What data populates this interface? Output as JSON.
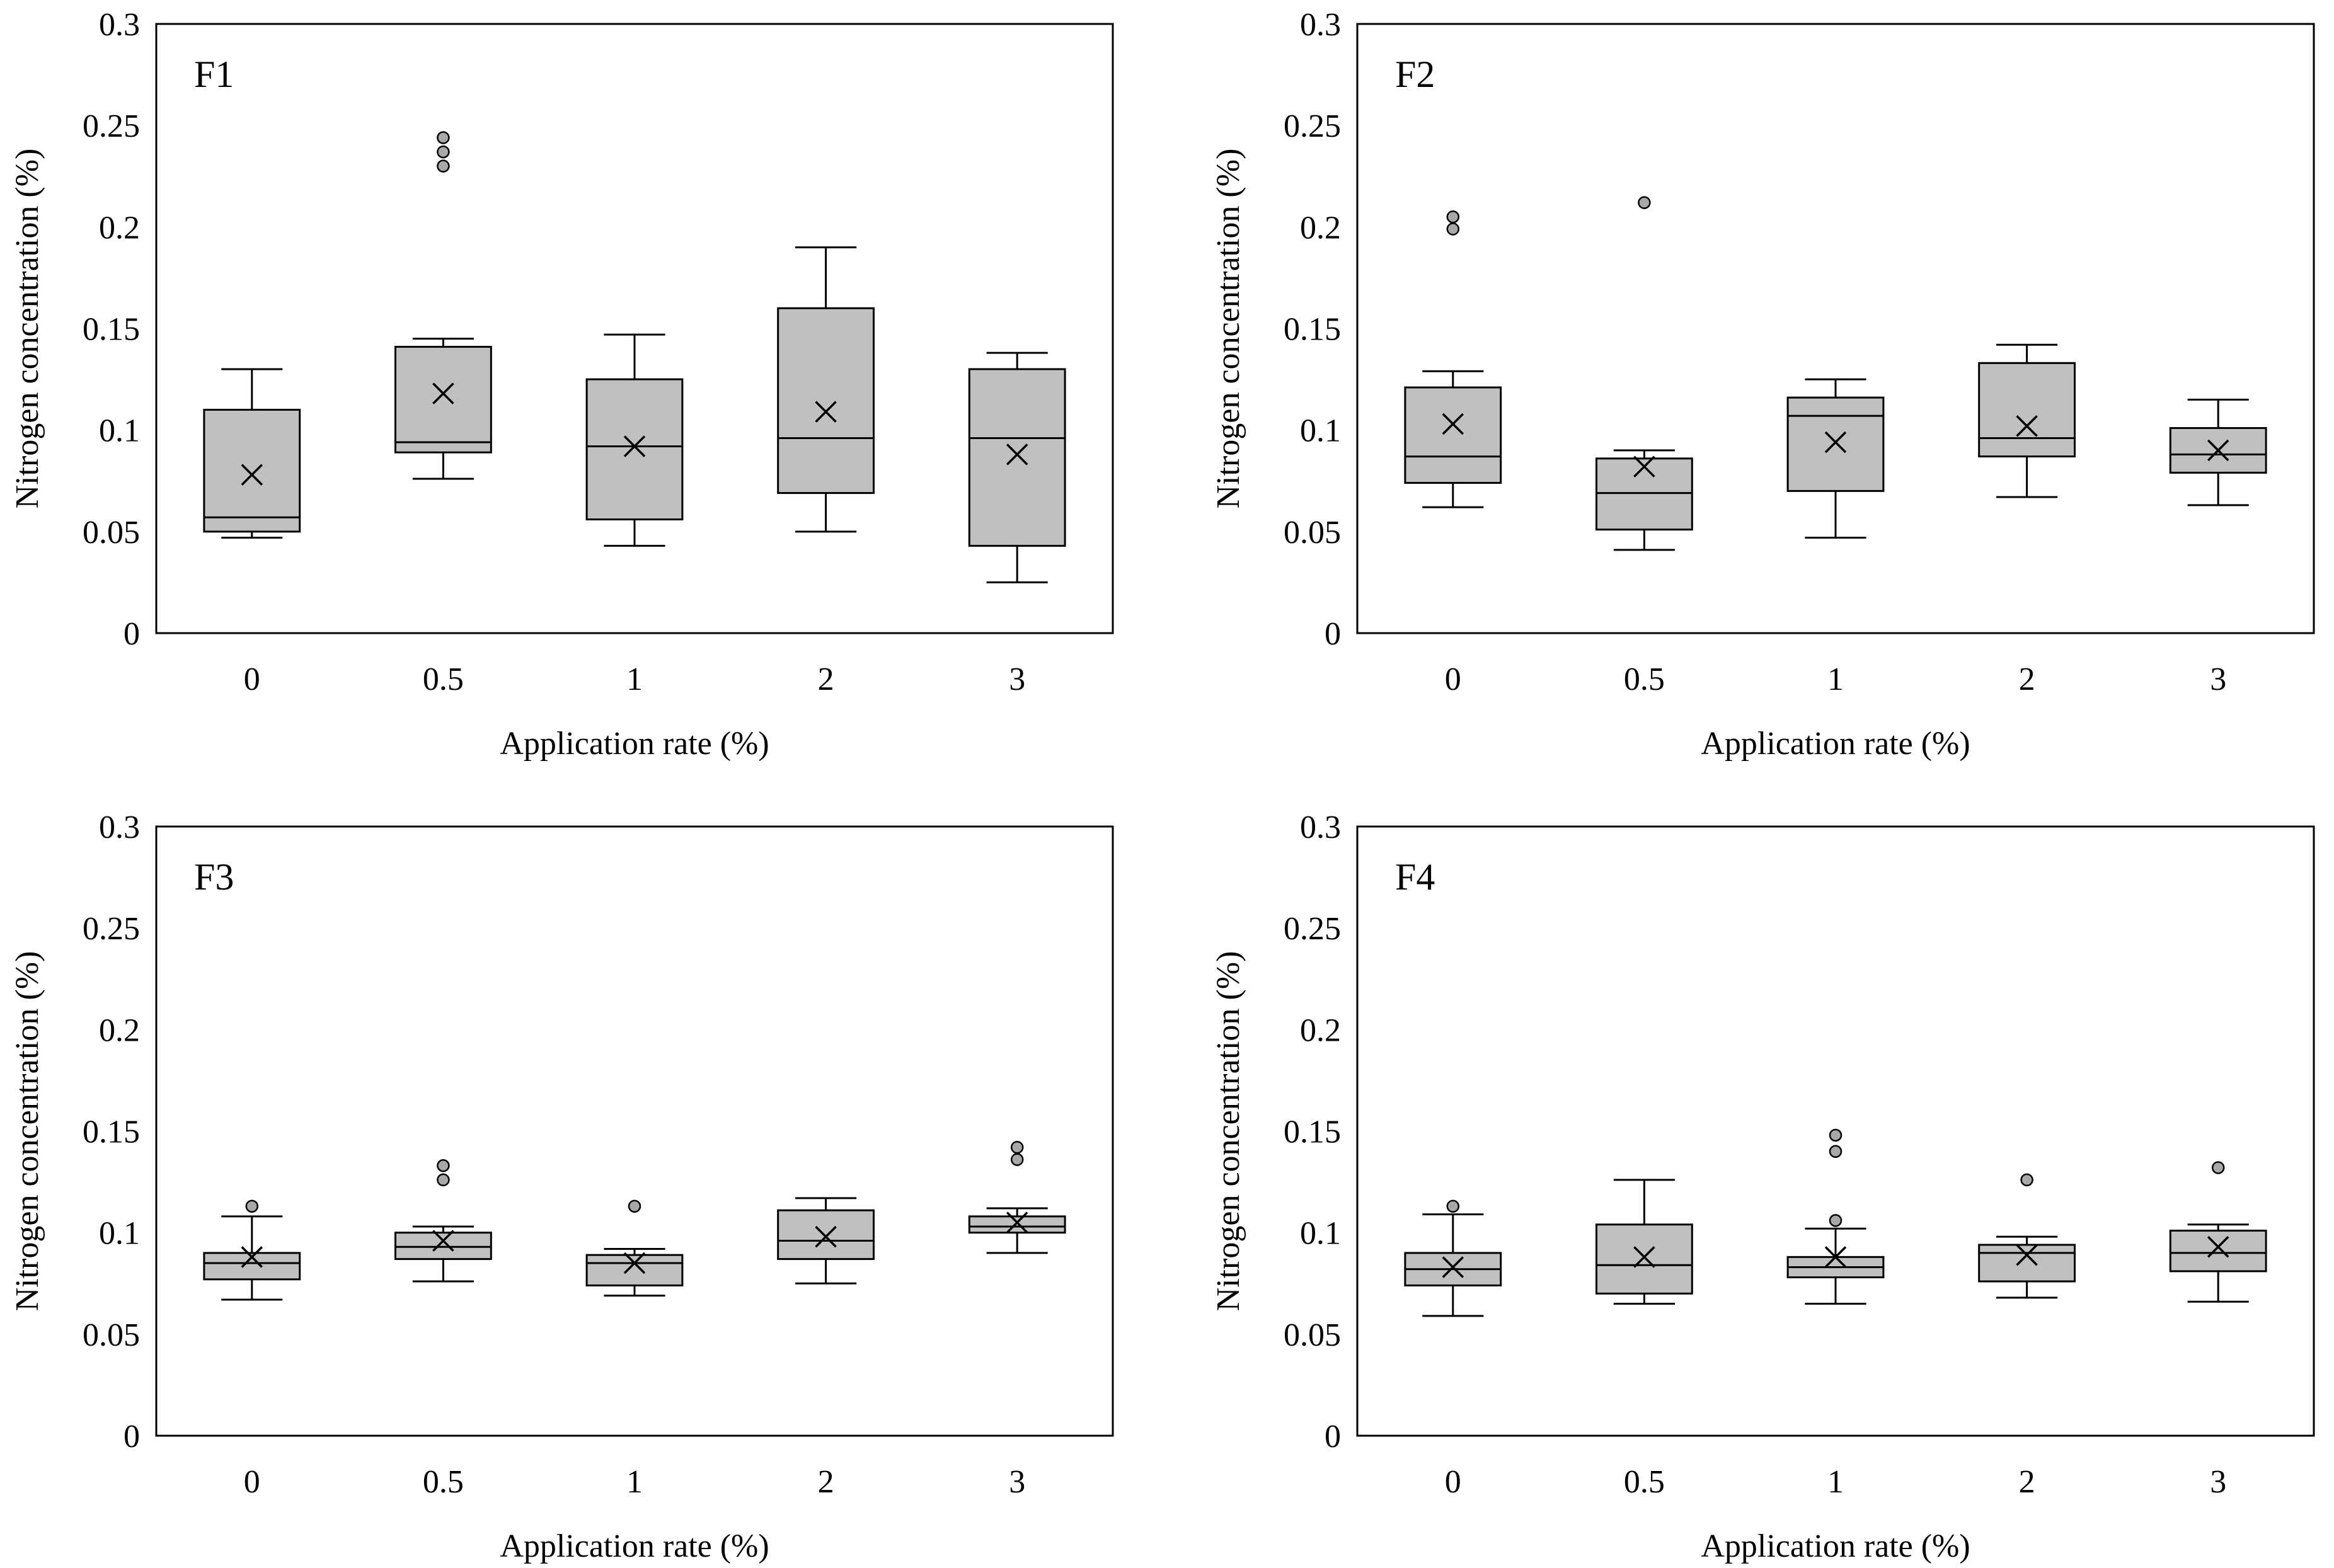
{
  "style": {
    "box_fill": "#c0c0c0",
    "stroke": "#000000",
    "outlier_fill": "#a8a8a8",
    "background": "#ffffff"
  },
  "chart_data": [
    {
      "type": "box",
      "title": "F1",
      "xlabel": "Application rate (%)",
      "ylabel": "Nitrogen concentration (%)",
      "categories": [
        "0",
        "0.5",
        "1",
        "2",
        "3"
      ],
      "ylim": [
        0,
        0.3
      ],
      "yticks": [
        "0",
        "0.05",
        "0.1",
        "0.15",
        "0.2",
        "0.25",
        "0.3"
      ],
      "grid": false,
      "boxes": [
        {
          "category": "0",
          "whisker_low": 0.047,
          "q1": 0.05,
          "median": 0.057,
          "q3": 0.11,
          "whisker_high": 0.13,
          "mean": 0.078,
          "outliers": []
        },
        {
          "category": "0.5",
          "whisker_low": 0.076,
          "q1": 0.089,
          "median": 0.094,
          "q3": 0.141,
          "whisker_high": 0.145,
          "mean": 0.118,
          "outliers": [
            0.23,
            0.237,
            0.244
          ]
        },
        {
          "category": "1",
          "whisker_low": 0.043,
          "q1": 0.056,
          "median": 0.092,
          "q3": 0.125,
          "whisker_high": 0.147,
          "mean": 0.092,
          "outliers": []
        },
        {
          "category": "2",
          "whisker_low": 0.05,
          "q1": 0.069,
          "median": 0.096,
          "q3": 0.16,
          "whisker_high": 0.19,
          "mean": 0.109,
          "outliers": []
        },
        {
          "category": "3",
          "whisker_low": 0.025,
          "q1": 0.043,
          "median": 0.096,
          "q3": 0.13,
          "whisker_high": 0.138,
          "mean": 0.088,
          "outliers": []
        }
      ]
    },
    {
      "type": "box",
      "title": "F2",
      "xlabel": "Application rate (%)",
      "ylabel": "Nitrogen concentration (%)",
      "categories": [
        "0",
        "0.5",
        "1",
        "2",
        "3"
      ],
      "ylim": [
        0,
        0.3
      ],
      "yticks": [
        "0",
        "0.05",
        "0.1",
        "0.15",
        "0.2",
        "0.25",
        "0.3"
      ],
      "grid": false,
      "boxes": [
        {
          "category": "0",
          "whisker_low": 0.062,
          "q1": 0.074,
          "median": 0.087,
          "q3": 0.121,
          "whisker_high": 0.129,
          "mean": 0.103,
          "outliers": [
            0.199,
            0.205
          ]
        },
        {
          "category": "0.5",
          "whisker_low": 0.041,
          "q1": 0.051,
          "median": 0.069,
          "q3": 0.086,
          "whisker_high": 0.09,
          "mean": 0.082,
          "outliers": [
            0.212
          ]
        },
        {
          "category": "1",
          "whisker_low": 0.047,
          "q1": 0.07,
          "median": 0.107,
          "q3": 0.116,
          "whisker_high": 0.125,
          "mean": 0.094,
          "outliers": []
        },
        {
          "category": "2",
          "whisker_low": 0.067,
          "q1": 0.087,
          "median": 0.096,
          "q3": 0.133,
          "whisker_high": 0.142,
          "mean": 0.102,
          "outliers": []
        },
        {
          "category": "3",
          "whisker_low": 0.063,
          "q1": 0.079,
          "median": 0.088,
          "q3": 0.101,
          "whisker_high": 0.115,
          "mean": 0.09,
          "outliers": []
        }
      ]
    },
    {
      "type": "box",
      "title": "F3",
      "xlabel": "Application rate (%)",
      "ylabel": "Nitrogen concentration (%)",
      "categories": [
        "0",
        "0.5",
        "1",
        "2",
        "3"
      ],
      "ylim": [
        0,
        0.3
      ],
      "yticks": [
        "0",
        "0.05",
        "0.1",
        "0.15",
        "0.2",
        "0.25",
        "0.3"
      ],
      "grid": false,
      "boxes": [
        {
          "category": "0",
          "whisker_low": 0.067,
          "q1": 0.077,
          "median": 0.085,
          "q3": 0.09,
          "whisker_high": 0.108,
          "mean": 0.088,
          "outliers": [
            0.113
          ]
        },
        {
          "category": "0.5",
          "whisker_low": 0.076,
          "q1": 0.087,
          "median": 0.093,
          "q3": 0.1,
          "whisker_high": 0.103,
          "mean": 0.096,
          "outliers": [
            0.126,
            0.133
          ]
        },
        {
          "category": "1",
          "whisker_low": 0.069,
          "q1": 0.074,
          "median": 0.085,
          "q3": 0.089,
          "whisker_high": 0.092,
          "mean": 0.085,
          "outliers": [
            0.113
          ]
        },
        {
          "category": "2",
          "whisker_low": 0.075,
          "q1": 0.087,
          "median": 0.096,
          "q3": 0.111,
          "whisker_high": 0.117,
          "mean": 0.098,
          "outliers": []
        },
        {
          "category": "3",
          "whisker_low": 0.09,
          "q1": 0.1,
          "median": 0.103,
          "q3": 0.108,
          "whisker_high": 0.112,
          "mean": 0.105,
          "outliers": [
            0.136,
            0.142
          ]
        }
      ]
    },
    {
      "type": "box",
      "title": "F4",
      "xlabel": "Application rate (%)",
      "ylabel": "Nitrogen concentration (%)",
      "categories": [
        "0",
        "0.5",
        "1",
        "2",
        "3"
      ],
      "ylim": [
        0,
        0.3
      ],
      "yticks": [
        "0",
        "0.05",
        "0.1",
        "0.15",
        "0.2",
        "0.25",
        "0.3"
      ],
      "grid": false,
      "boxes": [
        {
          "category": "0",
          "whisker_low": 0.059,
          "q1": 0.074,
          "median": 0.082,
          "q3": 0.09,
          "whisker_high": 0.109,
          "mean": 0.083,
          "outliers": [
            0.113
          ]
        },
        {
          "category": "0.5",
          "whisker_low": 0.065,
          "q1": 0.07,
          "median": 0.084,
          "q3": 0.104,
          "whisker_high": 0.126,
          "mean": 0.088,
          "outliers": []
        },
        {
          "category": "1",
          "whisker_low": 0.065,
          "q1": 0.078,
          "median": 0.083,
          "q3": 0.088,
          "whisker_high": 0.102,
          "mean": 0.088,
          "outliers": [
            0.106,
            0.14,
            0.148
          ]
        },
        {
          "category": "2",
          "whisker_low": 0.068,
          "q1": 0.076,
          "median": 0.09,
          "q3": 0.094,
          "whisker_high": 0.098,
          "mean": 0.089,
          "outliers": [
            0.126
          ]
        },
        {
          "category": "3",
          "whisker_low": 0.066,
          "q1": 0.081,
          "median": 0.09,
          "q3": 0.101,
          "whisker_high": 0.104,
          "mean": 0.093,
          "outliers": [
            0.132
          ]
        }
      ]
    }
  ]
}
